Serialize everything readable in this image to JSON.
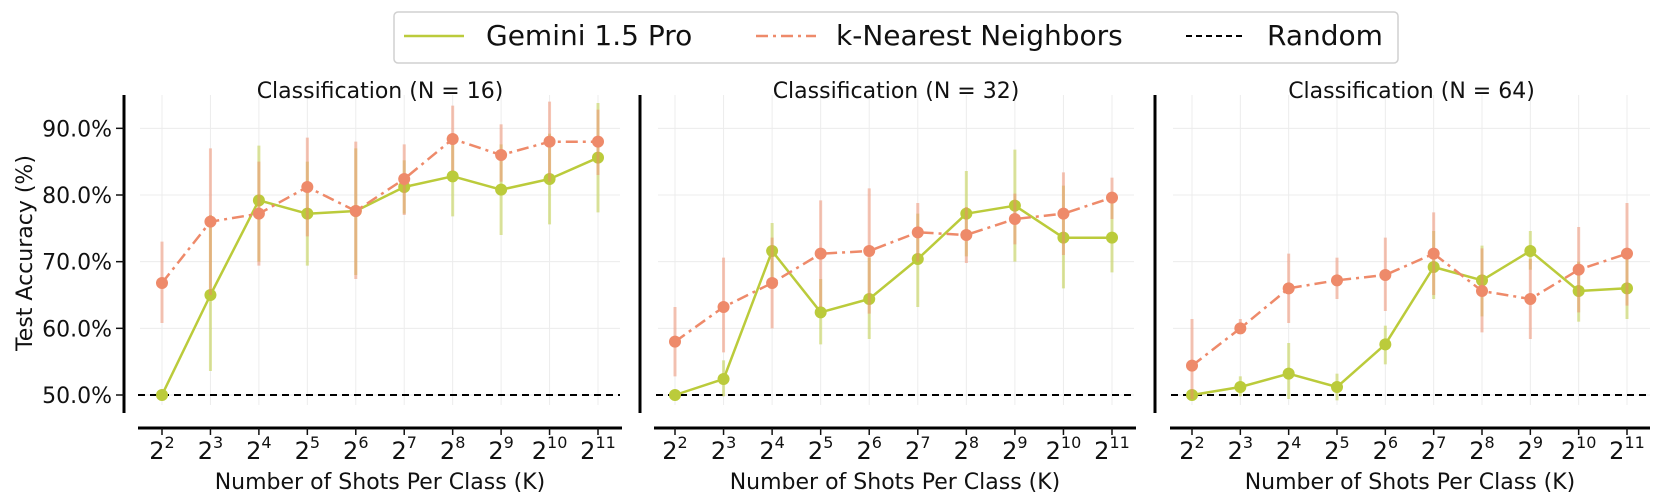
{
  "chart_data": {
    "type": "line",
    "legend": {
      "placement": "top-center",
      "entries": [
        {
          "label": "Gemini 1.5 Pro",
          "color": "#BBCB3B",
          "style": "solid"
        },
        {
          "label": "k-Nearest Neighbors",
          "color": "#EE8A6A",
          "style": "dashdot"
        },
        {
          "label": "Random",
          "color": "#000000",
          "style": "dashed"
        }
      ]
    },
    "ylabel": "Test Accuracy (%)",
    "xlabel": "Number of Shots Per Class (K)",
    "ylim": [
      48.5,
      95
    ],
    "yticks": [
      50,
      60,
      70,
      80,
      90
    ],
    "ytick_labels": [
      "50.0%",
      "60.0%",
      "70.0%",
      "80.0%",
      "90.0%"
    ],
    "x_exponents": [
      2,
      3,
      4,
      5,
      6,
      7,
      8,
      9,
      10,
      11
    ],
    "x_base": "2",
    "random_baseline": 50,
    "grid": true,
    "panels": [
      {
        "title": "Classification (N = 16)",
        "series": [
          {
            "name": "Gemini 1.5 Pro",
            "values": [
              50.0,
              65.0,
              79.2,
              77.2,
              77.6,
              81.2,
              82.8,
              80.8,
              82.4,
              85.6
            ],
            "err_low": [
              50.0,
              53.6,
              70.0,
              69.4,
              68.0,
              77.2,
              76.8,
              74.0,
              75.6,
              77.4
            ],
            "err_high": [
              50.0,
              77.0,
              87.4,
              85.0,
              87.0,
              85.2,
              88.8,
              87.6,
              89.2,
              93.8
            ]
          },
          {
            "name": "k-Nearest Neighbors",
            "values": [
              66.8,
              76.0,
              77.2,
              81.2,
              77.6,
              82.4,
              88.4,
              86.0,
              88.0,
              88.0
            ],
            "err_low": [
              60.8,
              65.0,
              69.4,
              73.8,
              67.4,
              77.0,
              83.6,
              82.0,
              82.0,
              83.0
            ],
            "err_high": [
              73.0,
              87.0,
              85.0,
              88.6,
              88.0,
              87.6,
              93.4,
              90.6,
              94.0,
              92.8
            ]
          }
        ]
      },
      {
        "title": "Classification (N = 32)",
        "series": [
          {
            "name": "Gemini 1.5 Pro",
            "values": [
              50.0,
              52.4,
              71.6,
              62.4,
              64.4,
              70.4,
              77.2,
              78.4,
              73.6,
              73.6
            ],
            "err_low": [
              50.0,
              49.8,
              67.2,
              57.6,
              58.4,
              63.2,
              70.8,
              70.0,
              66.0,
              68.4
            ],
            "err_high": [
              50.0,
              55.2,
              75.8,
              67.4,
              70.6,
              77.2,
              83.6,
              86.8,
              81.4,
              78.8
            ]
          },
          {
            "name": "k-Nearest Neighbors",
            "values": [
              58.0,
              63.2,
              66.8,
              71.2,
              71.6,
              74.4,
              74.0,
              76.4,
              77.2,
              79.6
            ],
            "err_low": [
              52.8,
              56.4,
              60.0,
              63.2,
              62.2,
              70.0,
              69.8,
              72.6,
              71.0,
              76.4
            ],
            "err_high": [
              63.2,
              70.6,
              73.6,
              79.2,
              81.0,
              78.8,
              78.2,
              80.2,
              83.4,
              82.6
            ]
          }
        ]
      },
      {
        "title": "Classification (N = 64)",
        "series": [
          {
            "name": "Gemini 1.5 Pro",
            "values": [
              50.0,
              51.2,
              53.2,
              51.2,
              57.6,
              69.2,
              67.2,
              71.6,
              65.6,
              66.0
            ],
            "err_low": [
              50.0,
              49.8,
              49.4,
              49.2,
              54.6,
              64.4,
              61.8,
              68.8,
              61.0,
              61.4
            ],
            "err_high": [
              50.0,
              52.8,
              57.8,
              53.2,
              60.4,
              74.6,
              72.4,
              74.6,
              70.0,
              70.6
            ]
          },
          {
            "name": "k-Nearest Neighbors",
            "values": [
              54.4,
              60.0,
              66.0,
              67.2,
              68.0,
              71.2,
              65.6,
              64.4,
              68.8,
              71.2
            ],
            "err_low": [
              49.4,
              59.4,
              60.8,
              64.4,
              62.6,
              65.0,
              59.4,
              58.4,
              62.4,
              63.4
            ],
            "err_high": [
              61.4,
              61.4,
              71.2,
              70.6,
              73.6,
              77.4,
              72.0,
              70.4,
              75.2,
              78.8
            ]
          }
        ]
      }
    ]
  }
}
